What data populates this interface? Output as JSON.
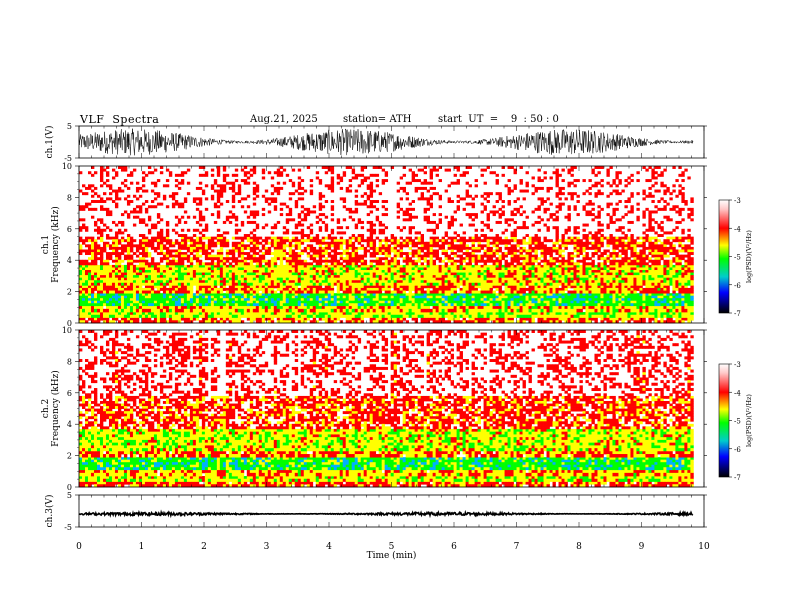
{
  "header": {
    "title": "VLF  Spectra",
    "date": "Aug.21, 2025",
    "station": "station= ATH",
    "start": "start  UT  =    9  : 50 : 0"
  },
  "chart_data": [
    {
      "type": "line",
      "name": "ch1-waveform",
      "ylabel": "ch.1(V)",
      "ylim": [
        -5,
        5
      ],
      "yticks": [
        "5",
        "-5"
      ],
      "xlim": [
        0,
        10
      ],
      "amplitude": 4.2,
      "color": "#000000"
    },
    {
      "type": "heatmap",
      "name": "ch1-spectrogram",
      "ylabel": [
        "ch.1",
        "Frequency  (kHz)"
      ],
      "ylim": [
        0,
        10
      ],
      "yticks": [
        "0",
        "2",
        "4",
        "6",
        "8",
        "10"
      ],
      "xlim": [
        0,
        10
      ],
      "data_extent_min": 9.83,
      "bands": [
        {
          "range": [
            0.0,
            0.35
          ],
          "level": -3.9
        },
        {
          "range": [
            0.35,
            0.7
          ],
          "level": -4.6
        },
        {
          "range": [
            0.7,
            1.1
          ],
          "level": -4.3
        },
        {
          "range": [
            1.1,
            1.9
          ],
          "level": -5.0
        },
        {
          "range": [
            1.9,
            2.4
          ],
          "level": -4.0
        },
        {
          "range": [
            2.4,
            3.7
          ],
          "level": -4.4
        },
        {
          "range": [
            3.7,
            5.5
          ],
          "level": -3.8
        },
        {
          "range": [
            5.5,
            10.0
          ],
          "level": -3.3
        }
      ],
      "colorbar": {
        "label": "log(PSD)(V²/Hz)",
        "ticks": [
          "-3",
          "-4",
          "-5",
          "-6",
          "-7"
        ],
        "range": [
          -7,
          -3
        ]
      }
    },
    {
      "type": "heatmap",
      "name": "ch2-spectrogram",
      "ylabel": [
        "ch.2",
        "Frequency  (kHz)"
      ],
      "ylim": [
        0,
        10
      ],
      "yticks": [
        "0",
        "2",
        "4",
        "6",
        "8",
        "10"
      ],
      "xlim": [
        0,
        10
      ],
      "data_extent_min": 9.83,
      "bands": [
        {
          "range": [
            0.0,
            0.35
          ],
          "level": -3.9
        },
        {
          "range": [
            0.35,
            0.7
          ],
          "level": -4.5
        },
        {
          "range": [
            0.7,
            1.1
          ],
          "level": -4.2
        },
        {
          "range": [
            1.1,
            1.9
          ],
          "level": -5.0
        },
        {
          "range": [
            1.9,
            2.3
          ],
          "level": -4.0
        },
        {
          "range": [
            2.3,
            3.7
          ],
          "level": -4.5
        },
        {
          "range": [
            3.7,
            5.8
          ],
          "level": -3.8
        },
        {
          "range": [
            5.8,
            10.0
          ],
          "level": -3.4
        }
      ],
      "colorbar": {
        "label": "log(PSD)(V²/Hz)",
        "ticks": [
          "-3",
          "-4",
          "-5",
          "-6",
          "-7"
        ],
        "range": [
          -7,
          -3
        ]
      }
    },
    {
      "type": "line",
      "name": "ch3-waveform",
      "ylabel": "ch.3(V)",
      "ylim": [
        -5,
        5
      ],
      "yticks": [
        "5",
        "-5"
      ],
      "xlim": [
        0,
        10
      ],
      "xlabel": "Time  (min)",
      "xticks": [
        "0",
        "1",
        "2",
        "3",
        "4",
        "5",
        "6",
        "7",
        "8",
        "9",
        "10"
      ],
      "amplitude": 0.5,
      "offset": -0.9,
      "color": "#000000"
    }
  ],
  "colors": {
    "white": "#ffffff",
    "red": "#ff0000",
    "yellow": "#ffff00",
    "green": "#00ff00",
    "blue": "#0000ff",
    "black": "#000000"
  }
}
